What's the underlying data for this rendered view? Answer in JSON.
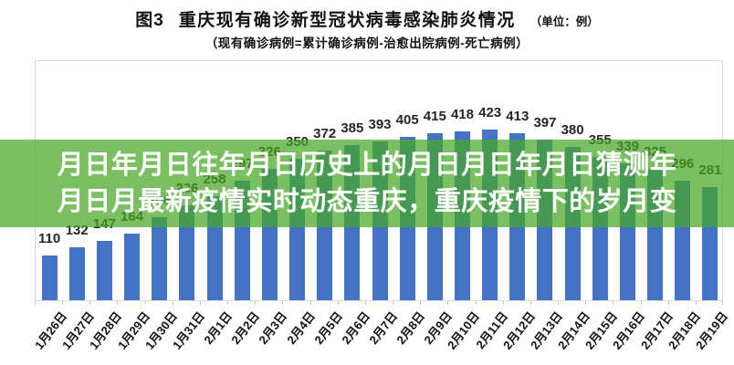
{
  "header": {
    "figure_label": "图3",
    "title": "重庆现有确诊新型冠状病毒感染肺炎情况",
    "unit_note": "（单位：例）",
    "subtitle": "（现有确诊病例=累计确诊病例-治愈出院病例-死亡病例）"
  },
  "overlay": {
    "line1": "月日年月日往年月日历史上的月日月日年月日猜测年",
    "line2": "月日月最新疫情实时动态重庆，重庆疫情下的岁月变",
    "band_color": "rgba(70,168,38,0.72)",
    "text_color": "#ffffff"
  },
  "chart_data": {
    "type": "bar",
    "title": "重庆现有确诊新型冠状病毒感染肺炎情况（单位：例）",
    "categories": [
      "1月26日",
      "1月27日",
      "1月28日",
      "1月29日",
      "1月30日",
      "1月31日",
      "2月1日",
      "2月2日",
      "2月3日",
      "2月4日",
      "2月5日",
      "2月6日",
      "2月7日",
      "2月8日",
      "2月9日",
      "2月10日",
      "2月11日",
      "2月12日",
      "2月13日",
      "2月14日",
      "2月15日",
      "2月16日",
      "2月17日",
      "2月18日",
      "2月19日"
    ],
    "values": [
      110,
      132,
      147,
      164,
      206,
      236,
      258,
      297,
      326,
      350,
      372,
      385,
      393,
      405,
      415,
      418,
      423,
      413,
      397,
      380,
      355,
      339,
      325,
      296,
      281
    ],
    "bar_color": "#4472C4",
    "axis_border_color": "#d9d9d9",
    "data_labels": true,
    "label_color": "#262626",
    "ylim": [
      0,
      450
    ],
    "grid": false,
    "legend": false,
    "xlabel": "",
    "ylabel": ""
  }
}
